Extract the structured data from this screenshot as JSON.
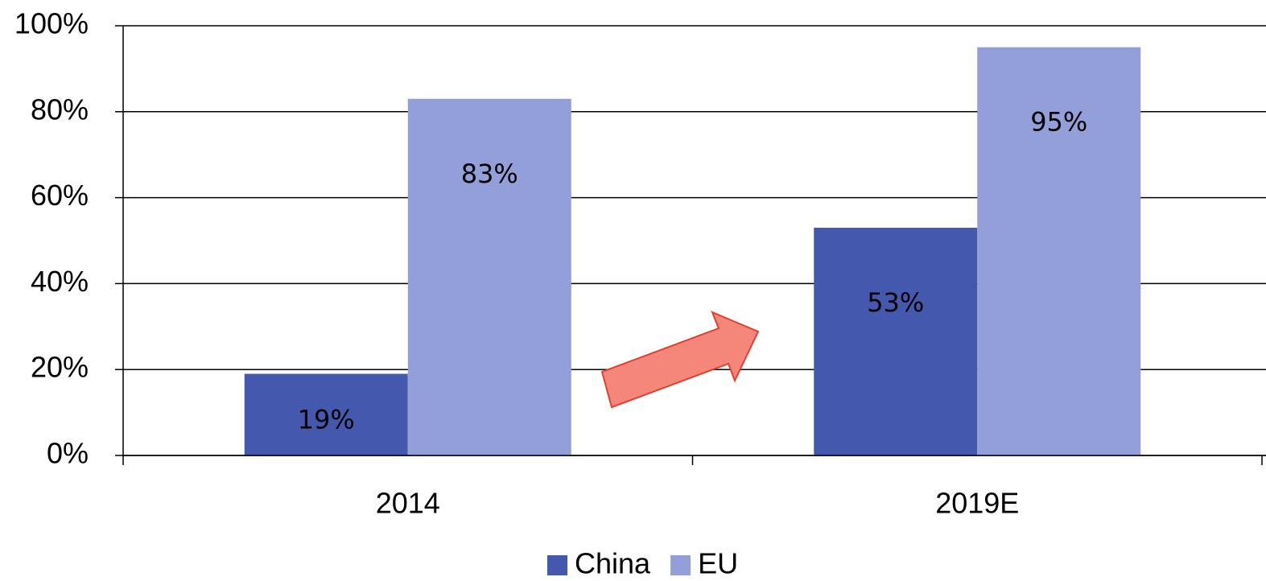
{
  "chart_data": {
    "type": "bar",
    "categories": [
      "2014",
      "2019E"
    ],
    "series": [
      {
        "name": "China",
        "color": "#4459ae",
        "values": [
          19,
          53
        ],
        "value_labels": [
          "19%",
          "53%"
        ]
      },
      {
        "name": "EU",
        "color": "#939fd8",
        "values": [
          83,
          95
        ],
        "value_labels": [
          "83%",
          "95%"
        ]
      }
    ],
    "ylim": [
      0,
      100
    ],
    "yticks": [
      {
        "value": 0,
        "label": "0%"
      },
      {
        "value": 20,
        "label": "20%"
      },
      {
        "value": 40,
        "label": "40%"
      },
      {
        "value": 60,
        "label": "60%"
      },
      {
        "value": 80,
        "label": "80%"
      },
      {
        "value": 100,
        "label": "100%"
      }
    ],
    "grid": true,
    "legend": "bottom"
  }
}
